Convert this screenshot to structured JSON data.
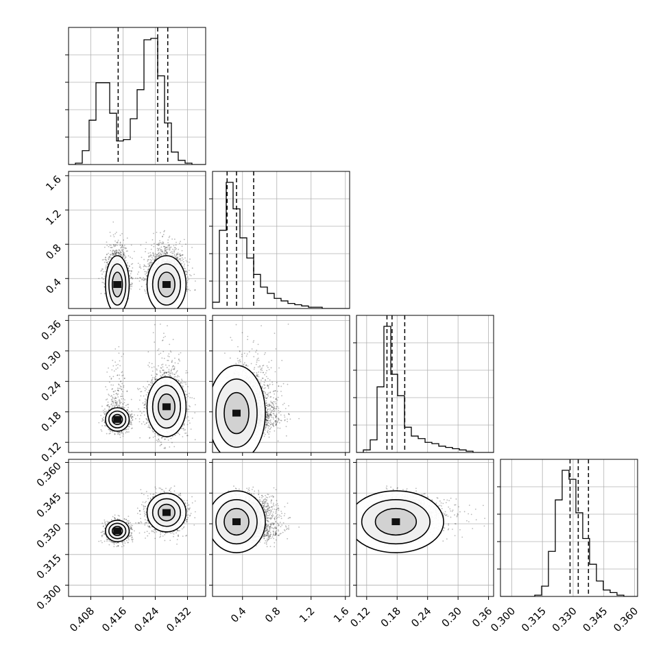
{
  "chart_data": {
    "type": "corner",
    "grid": true,
    "params": [
      {
        "range": [
          0.4025,
          0.4365
        ],
        "ticks": [
          "0.408",
          "0.416",
          "0.424",
          "0.432"
        ],
        "quantiles": [
          0.4148,
          0.4246,
          0.4271
        ],
        "hist": [
          0.0,
          0.01,
          0.1,
          0.32,
          0.59,
          0.59,
          0.37,
          0.17,
          0.18,
          0.33,
          0.54,
          0.9,
          0.91,
          0.64,
          0.3,
          0.09,
          0.03,
          0.01,
          0.0,
          0.0
        ]
      },
      {
        "range": [
          0.05,
          1.65
        ],
        "ticks": [
          "0.4",
          "0.8",
          "1.2",
          "1.6"
        ],
        "quantiles": [
          0.22,
          0.33,
          0.53
        ],
        "hist": [
          0.05,
          0.62,
          1.0,
          0.79,
          0.56,
          0.4,
          0.27,
          0.17,
          0.12,
          0.08,
          0.06,
          0.04,
          0.03,
          0.02,
          0.01,
          0.01,
          0.0,
          0.0,
          0.0,
          0.0
        ]
      },
      {
        "range": [
          0.1,
          0.37
        ],
        "ticks": [
          "0.12",
          "0.18",
          "0.24",
          "0.30",
          "0.36"
        ],
        "quantiles": [
          0.16,
          0.17,
          0.195
        ],
        "hist": [
          0.0,
          0.02,
          0.1,
          0.52,
          1.0,
          0.62,
          0.45,
          0.2,
          0.13,
          0.11,
          0.08,
          0.07,
          0.05,
          0.04,
          0.03,
          0.02,
          0.01,
          0.0,
          0.0,
          0.0
        ]
      },
      {
        "range": [
          0.2945,
          0.3615
        ],
        "ticks": [
          "0.300",
          "0.315",
          "0.330",
          "0.345",
          "0.360"
        ],
        "quantiles": [
          0.3285,
          0.3325,
          0.3375
        ],
        "hist": [
          0.0,
          0.0,
          0.0,
          0.0,
          0.0,
          0.01,
          0.08,
          0.35,
          0.75,
          0.98,
          0.91,
          0.65,
          0.45,
          0.25,
          0.12,
          0.05,
          0.03,
          0.01,
          0.0,
          0.0
        ]
      }
    ]
  }
}
